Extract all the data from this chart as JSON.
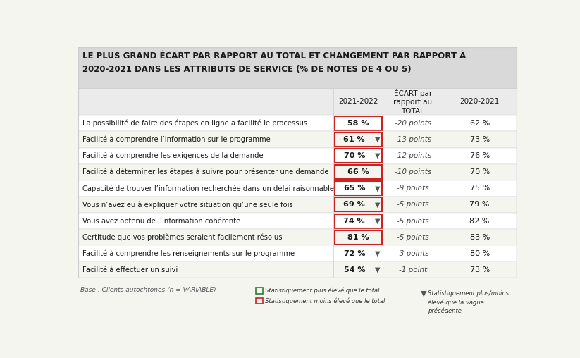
{
  "title": "LE PLUS GRAND ÉCART PAR RAPPORT AU TOTAL ET CHANGEMENT PAR RAPPORT À\n2020-2021 DANS LES ATTRIBUTS DE SERVICE (% DE NOTES DE 4 OU 5)",
  "col_headers": [
    "2021-2022",
    "ÉCART par\nrapport au\nTOTAL",
    "2020-2021"
  ],
  "rows": [
    {
      "label": "La possibilité de faire des étapes en ligne a facilité le processus",
      "val_2122": "58 %",
      "ecart": "-20 points",
      "val_2021": "62 %",
      "highlight": "red",
      "arrow": false
    },
    {
      "label": "Facilité à comprendre l’information sur le programme",
      "val_2122": "61 %",
      "ecart": "-13 points",
      "val_2021": "73 %",
      "highlight": "red",
      "arrow": true
    },
    {
      "label": "Facilité à comprendre les exigences de la demande",
      "val_2122": "70 %",
      "ecart": "-12 points",
      "val_2021": "76 %",
      "highlight": "red",
      "arrow": true
    },
    {
      "label": "Facilité à déterminer les étapes à suivre pour présenter une demande",
      "val_2122": "66 %",
      "ecart": "-10 points",
      "val_2021": "70 %",
      "highlight": "red",
      "arrow": false
    },
    {
      "label": "Capacité de trouver l’information recherchée dans un délai raisonnable",
      "val_2122": "65 %",
      "ecart": "-9 points",
      "val_2021": "75 %",
      "highlight": "red",
      "arrow": true
    },
    {
      "label": "Vous n’avez eu à expliquer votre situation qu’une seule fois",
      "val_2122": "69 %",
      "ecart": "-5 points",
      "val_2021": "79 %",
      "highlight": "red",
      "arrow": true
    },
    {
      "label": "Vous avez obtenu de l’information cohérente",
      "val_2122": "74 %",
      "ecart": "-5 points",
      "val_2021": "82 %",
      "highlight": "red",
      "arrow": true
    },
    {
      "label": "Certitude que vos problèmes seraient facilement résolus",
      "val_2122": "81 %",
      "ecart": "-5 points",
      "val_2021": "83 %",
      "highlight": "red",
      "arrow": false
    },
    {
      "label": "Facilité à comprendre les renseignements sur le programme",
      "val_2122": "72 %",
      "ecart": "-3 points",
      "val_2021": "80 %",
      "highlight": null,
      "arrow": true
    },
    {
      "label": "Facilité à effectuer un suivi",
      "val_2122": "54 %",
      "ecart": "-1 point",
      "val_2021": "73 %",
      "highlight": null,
      "arrow": true
    }
  ],
  "footer_base": "Base : Clients autochtones (n = VARIABLE)",
  "bg_color": "#f5f5f0",
  "title_bg": "#d9d9d9",
  "header_bg": "#ebebeb",
  "row_bg_odd": "#ffffff",
  "row_bg_even": "#f5f5f0",
  "border_color": "#cccccc",
  "text_color": "#1a1a1a",
  "ecart_color": "#444444",
  "red_highlight": "#cc2222",
  "green_highlight": "#2e7d2e"
}
